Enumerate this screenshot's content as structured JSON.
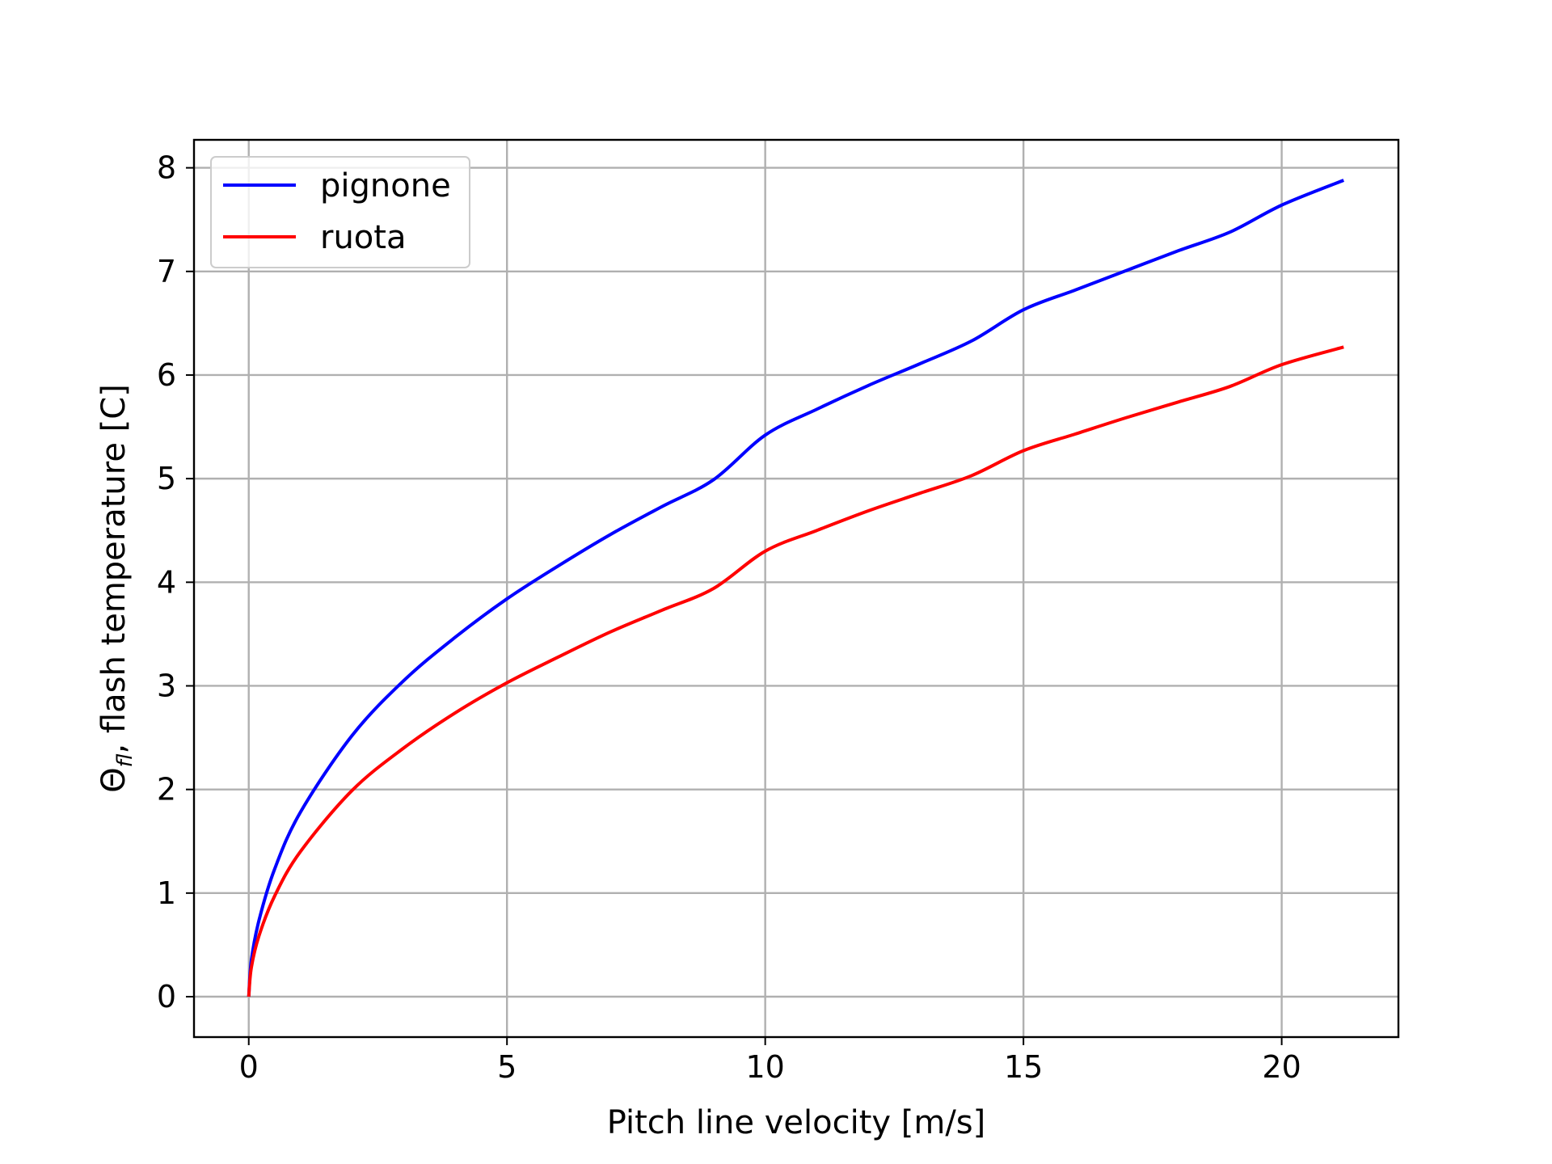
{
  "chart_data": {
    "type": "line",
    "xlabel": "Pitch line velocity [m/s]",
    "ylabel_parts": [
      "Θ",
      "fl",
      ", flash temperature [C]"
    ],
    "xlim": [
      -1.06,
      22.26
    ],
    "ylim": [
      -0.39,
      8.27
    ],
    "xticks": [
      0,
      5,
      10,
      15,
      20
    ],
    "yticks": [
      0,
      1,
      2,
      3,
      4,
      5,
      6,
      7,
      8
    ],
    "grid": true,
    "legend_position": "top-left",
    "x": [
      0,
      0.05,
      0.2,
      0.5,
      1,
      2,
      3,
      4,
      5,
      6,
      7,
      8,
      9,
      10,
      11,
      12,
      13,
      14,
      15,
      16,
      17,
      18,
      19,
      20,
      21.2
    ],
    "series": [
      {
        "name": "pignone",
        "color": "#0000ff",
        "values": [
          0,
          0.35,
          0.74,
          1.23,
          1.78,
          2.52,
          3.05,
          3.47,
          3.84,
          4.16,
          4.46,
          4.73,
          4.99,
          5.42,
          5.67,
          5.9,
          6.11,
          6.33,
          6.63,
          6.82,
          7.01,
          7.2,
          7.38,
          7.64,
          7.88
        ]
      },
      {
        "name": "ruota",
        "color": "#ff0000",
        "values": [
          0,
          0.28,
          0.59,
          0.97,
          1.4,
          1.99,
          2.4,
          2.74,
          3.03,
          3.28,
          3.52,
          3.73,
          3.94,
          4.3,
          4.5,
          4.69,
          4.86,
          5.03,
          5.27,
          5.43,
          5.59,
          5.74,
          5.89,
          6.1,
          6.27
        ]
      }
    ]
  }
}
